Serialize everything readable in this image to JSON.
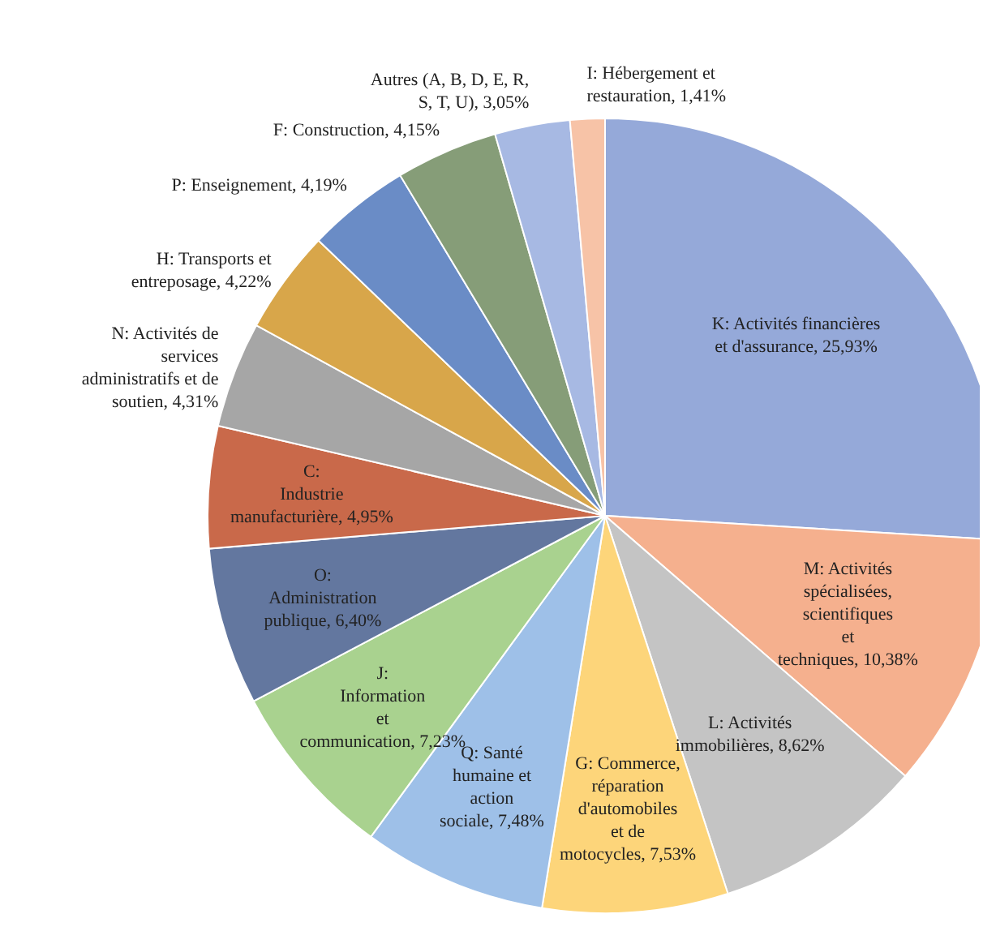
{
  "chart_data": {
    "type": "pie",
    "categories": [
      "K: Activités financières et d'assurance",
      "M: Activités spécialisées, scientifiques et techniques",
      "L: Activités immobilières",
      "G: Commerce, réparation d'automobiles et de motocycles",
      "Q: Santé humaine et action sociale",
      "J: Information et communication",
      "O: Administration publique",
      "C: Industrie manufacturière",
      "N: Activités de services administratifs et de soutien",
      "H: Transports et entreposage",
      "P: Enseignement",
      "F: Construction",
      "Autres (A, B, D, E, R, S, T, U)",
      "I: Hébergement et restauration"
    ],
    "values": [
      25.93,
      10.38,
      8.62,
      7.53,
      7.48,
      7.23,
      6.4,
      4.95,
      4.31,
      4.22,
      4.19,
      4.15,
      3.05,
      1.41
    ],
    "value_labels": [
      "25,93%",
      "10,38%",
      "8,62%",
      "7,53%",
      "7,48%",
      "7,23%",
      "6,40%",
      "4,95%",
      "4,31%",
      "4,22%",
      "4,19%",
      "4,15%",
      "3,05%",
      "1,41%"
    ],
    "colors": [
      "#95a9d9",
      "#f5b08e",
      "#c4c4c4",
      "#fdd57a",
      "#9ec0e8",
      "#a9d28f",
      "#63779f",
      "#c9694a",
      "#a6a6a6",
      "#d8a64a",
      "#6a8cc6",
      "#869d78",
      "#a7b9e3",
      "#f7c3a7"
    ]
  }
}
